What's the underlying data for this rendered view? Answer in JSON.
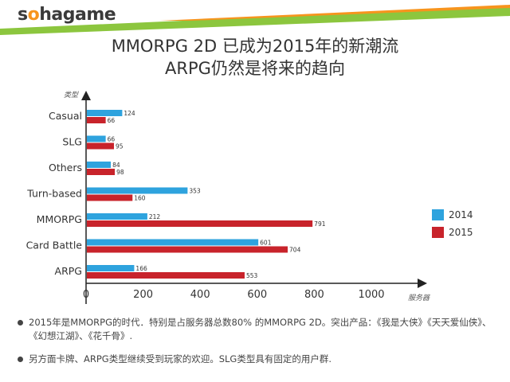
{
  "brand": {
    "logo_text": "sohagame",
    "accent_green": "#8cc63e",
    "orange": "#f7941d"
  },
  "chart_data": {
    "type": "bar",
    "orientation": "horizontal",
    "title": [
      "MMORPG 2D 已成为2015年的新潮流",
      "ARPG仍然是将来的趋向"
    ],
    "ylabel": "类型",
    "xlabel": "服务器",
    "categories": [
      "Casual",
      "SLG",
      "Others",
      "Turn-based",
      "MMORPG",
      "Card Battle",
      "ARPG"
    ],
    "series": [
      {
        "name": "2014",
        "color": "#2ea3de",
        "values": [
          124,
          66,
          84,
          353,
          212,
          601,
          166
        ]
      },
      {
        "name": "2015",
        "color": "#c8232b",
        "values": [
          66,
          95,
          98,
          160,
          791,
          704,
          553
        ]
      }
    ],
    "xlim": [
      0,
      1000
    ],
    "xticks": [
      "0",
      "200",
      "400",
      "600",
      "800",
      "1000"
    ],
    "legend_position": "right",
    "grid": false
  },
  "notes": [
    "2015年是MMORPG的时代．特别是占服务器总数80% 的MMORPG 2D。突出产品：《我是大侠》《天天爱仙侠》、《幻想江湖》、《花千骨》.",
    "另方面卡牌、ARPG类型继续受到玩家的欢迎。SLG类型具有固定的用户群."
  ]
}
